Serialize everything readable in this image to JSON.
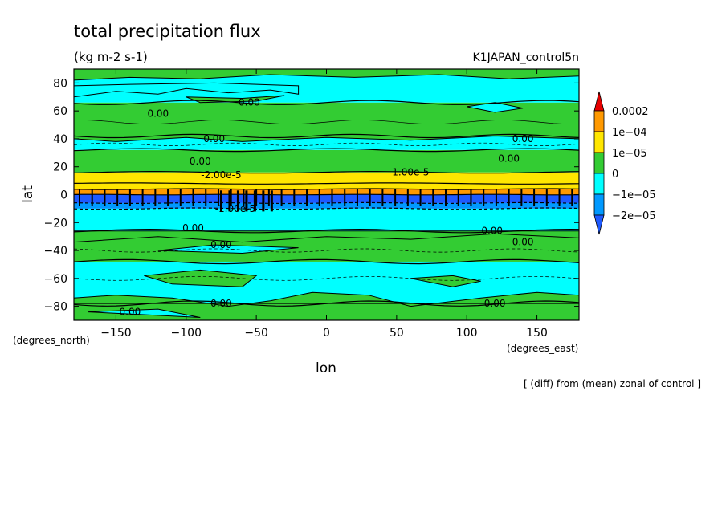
{
  "chart_data": {
    "type": "contour-map",
    "title": "total precipitation flux",
    "units": "(kg m-2 s-1)",
    "run_id": "K1JAPAN_control5n",
    "xlabel": "lon",
    "ylabel": "lat",
    "x_units": "(degrees_east)",
    "y_units": "(degrees_north)",
    "xlim": [
      -180,
      180
    ],
    "ylim": [
      -90,
      90
    ],
    "x_ticks": [
      -150,
      -100,
      -50,
      0,
      50,
      100,
      150
    ],
    "y_ticks": [
      -80,
      -60,
      -40,
      -20,
      0,
      20,
      40,
      60,
      80
    ],
    "note": "[ (diff) from (mean) zonal of control ]",
    "legend": {
      "placement": "right",
      "labels": [
        "0.0002",
        "1e-04",
        "1e-05",
        "0",
        "-1e-05",
        "-2e-05"
      ],
      "colors": [
        "#e60000",
        "#ff9900",
        "#ffe600",
        "#33cc33",
        "#00ffff",
        "#0099ff",
        "#1e5aff"
      ]
    },
    "bands": [
      {
        "lat_min": -90,
        "lat_max": -78,
        "level": "0"
      },
      {
        "lat_min": -78,
        "lat_max": -48,
        "level": "-1e-05"
      },
      {
        "lat_min": -48,
        "lat_max": -26,
        "level": "0"
      },
      {
        "lat_min": -26,
        "lat_max": -10,
        "level": "-1e-05"
      },
      {
        "lat_min": -10,
        "lat_max": -6,
        "level": "-2e-05"
      },
      {
        "lat_min": -6,
        "lat_max": 0,
        "level": "below -2e-05"
      },
      {
        "lat_min": 0,
        "lat_max": 4,
        "level": "1e-04"
      },
      {
        "lat_min": 4,
        "lat_max": 16,
        "level": "1e-05"
      },
      {
        "lat_min": 16,
        "lat_max": 32,
        "level": "0"
      },
      {
        "lat_min": 32,
        "lat_max": 42,
        "level": "-1e-05"
      },
      {
        "lat_min": 42,
        "lat_max": 66,
        "level": "0"
      },
      {
        "lat_min": 66,
        "lat_max": 88,
        "level": "-1e-05"
      },
      {
        "lat_min": 88,
        "lat_max": 90,
        "level": "0"
      }
    ],
    "contour_labels": [
      {
        "text": "0.00",
        "lon": -120,
        "lat": 58
      },
      {
        "text": "0.00",
        "lon": -55,
        "lat": 66
      },
      {
        "text": "0.00",
        "lon": -80,
        "lat": 40
      },
      {
        "text": "0.00",
        "lon": -90,
        "lat": 24
      },
      {
        "text": "0.00",
        "lon": 140,
        "lat": 40
      },
      {
        "text": "0.00",
        "lon": 130,
        "lat": 26
      },
      {
        "text": "-2.00e-5",
        "lon": -75,
        "lat": 14
      },
      {
        "text": "1.00e-5",
        "lon": 60,
        "lat": 16
      },
      {
        "text": "-1.00e-5",
        "lon": -65,
        "lat": -10
      },
      {
        "text": "0.00",
        "lon": -95,
        "lat": -24
      },
      {
        "text": "0.00",
        "lon": 118,
        "lat": -26
      },
      {
        "text": "0.00",
        "lon": 140,
        "lat": -34
      },
      {
        "text": "0.00",
        "lon": -75,
        "lat": -36
      },
      {
        "text": "0.00",
        "lon": -75,
        "lat": -78
      },
      {
        "text": "0.00",
        "lon": -140,
        "lat": -84
      },
      {
        "text": "0.00",
        "lon": 120,
        "lat": -78
      }
    ]
  }
}
